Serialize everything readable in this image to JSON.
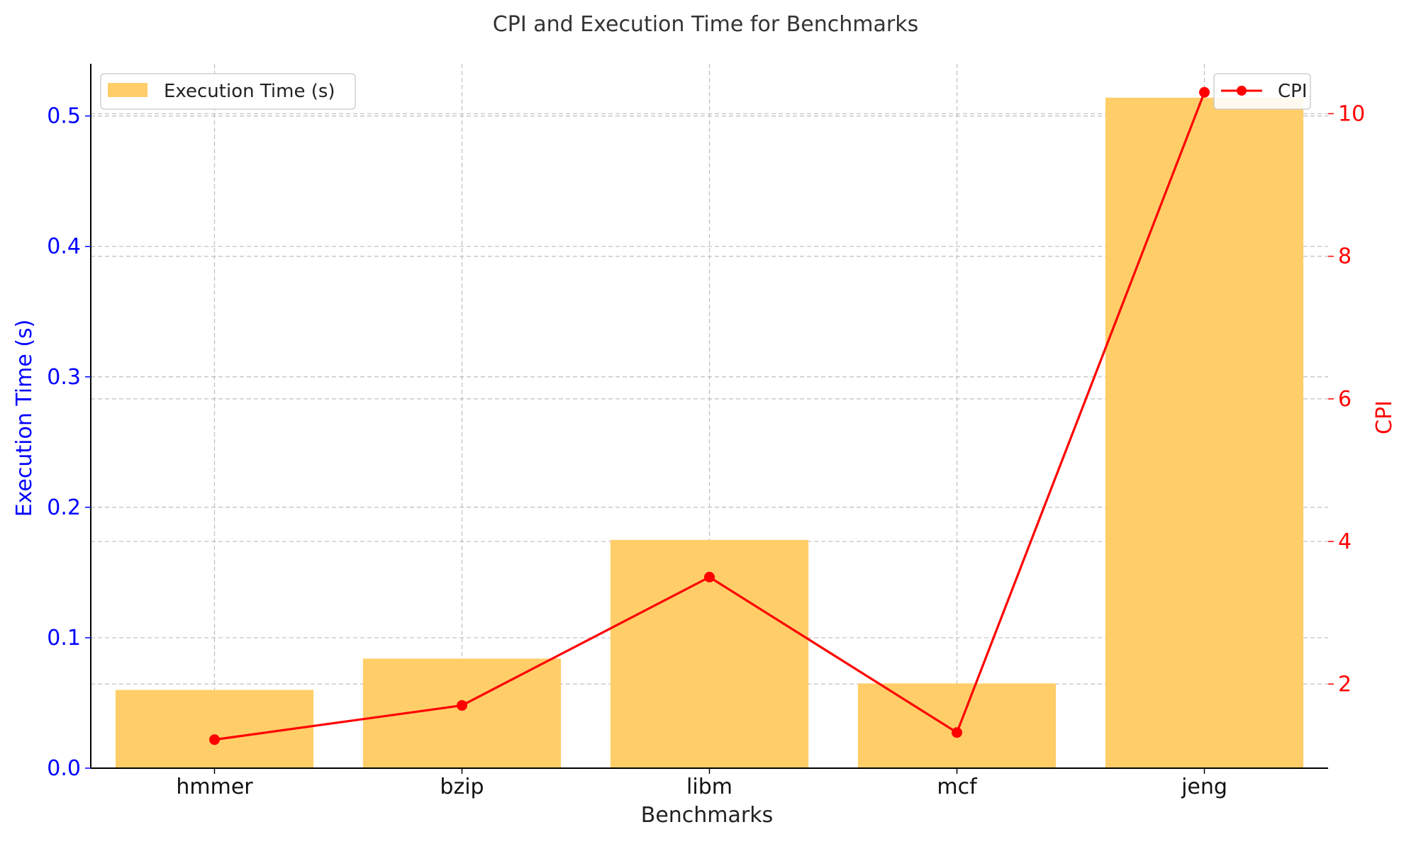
{
  "chart_data": {
    "type": "bar",
    "title": "CPI and Execution Time for Benchmarks",
    "xlabel": "Benchmarks",
    "ylabel": "Execution Time (s)",
    "y2label": "CPI",
    "categories": [
      "hmmer",
      "bzip",
      "libm",
      "mcf",
      "jeng"
    ],
    "series": [
      {
        "name": "Execution Time (s)",
        "type": "bar",
        "axis": "left",
        "color": "#FFCE69",
        "values": [
          0.06,
          0.084,
          0.175,
          0.065,
          0.514
        ]
      },
      {
        "name": "CPI",
        "type": "line",
        "axis": "right",
        "color": "#FF0000",
        "marker": "circle",
        "values": [
          1.22,
          1.7,
          3.5,
          1.32,
          10.3
        ]
      }
    ],
    "ylim": [
      0,
      0.54
    ],
    "y2lim": [
      0.82,
      10.7
    ],
    "yticks": [
      "0.0",
      "0.1",
      "0.2",
      "0.3",
      "0.4",
      "0.5"
    ],
    "yticks_values": [
      0,
      0.1,
      0.2,
      0.3,
      0.4,
      0.5
    ],
    "y2ticks": [
      "2",
      "4",
      "6",
      "8",
      "10"
    ],
    "y2ticks_values": [
      2,
      4,
      6,
      8,
      10
    ],
    "left_axis_color": "#0000FF",
    "right_axis_color": "#FF0000",
    "grid": true,
    "legend_left_placement": "top-left",
    "legend_right_placement": "top-right"
  }
}
